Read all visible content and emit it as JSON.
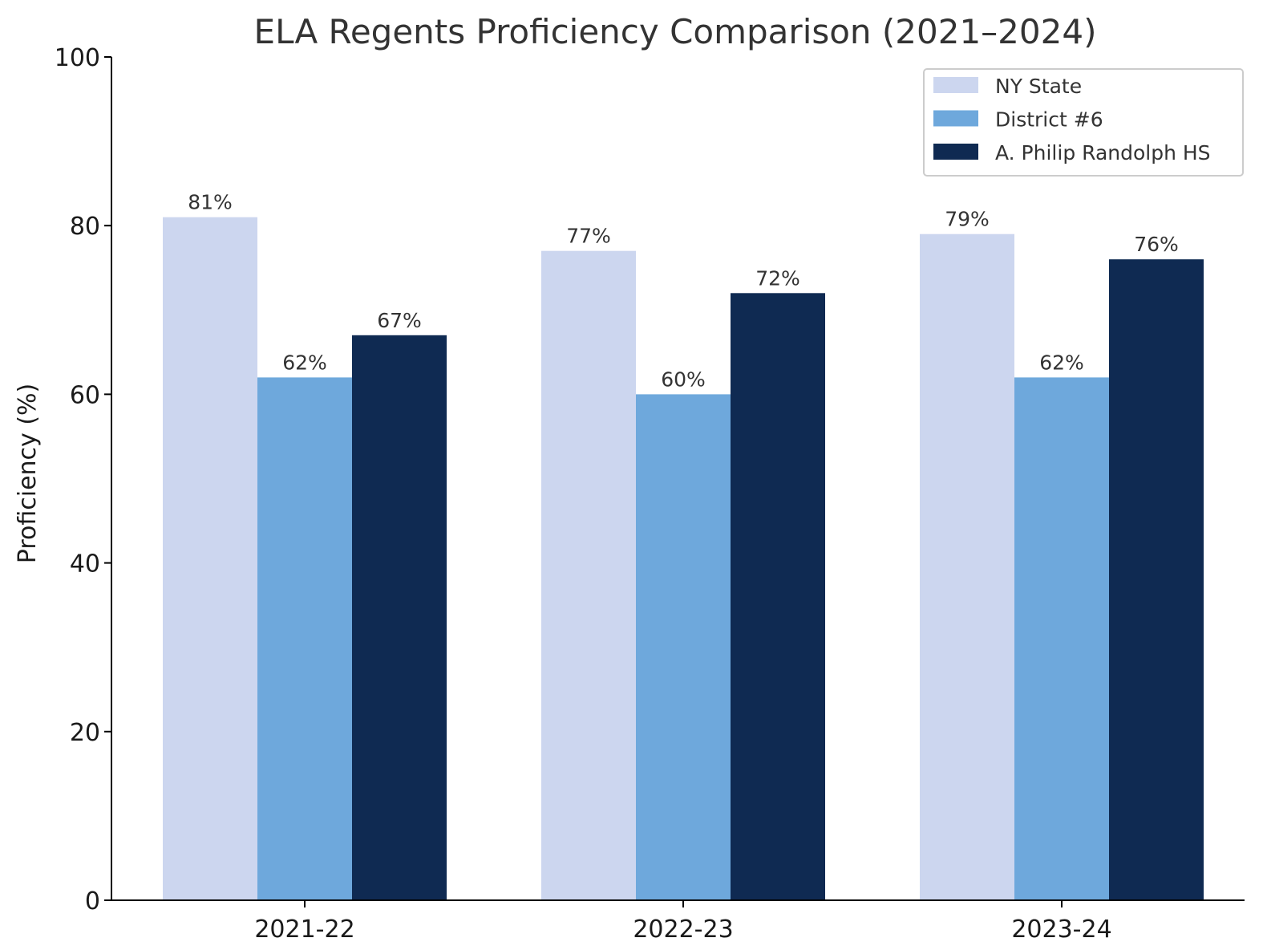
{
  "chart_data": {
    "type": "bar",
    "title": "ELA Regents Proficiency Comparison (2021–2024)",
    "xlabel": "",
    "ylabel": "Proficiency (%)",
    "categories": [
      "2021-22",
      "2022-23",
      "2023-24"
    ],
    "series": [
      {
        "name": "NY State",
        "values": [
          81,
          77,
          79
        ],
        "color": "#ccd6ef"
      },
      {
        "name": "District #6",
        "values": [
          62,
          60,
          62
        ],
        "color": "#6ea8dc"
      },
      {
        "name": "A. Philip Randolph HS",
        "values": [
          67,
          72,
          76
        ],
        "color": "#0f2a52"
      }
    ],
    "data_labels": [
      [
        "81%",
        "77%",
        "79%"
      ],
      [
        "62%",
        "60%",
        "62%"
      ],
      [
        "67%",
        "72%",
        "76%"
      ]
    ],
    "ylim": [
      0,
      100
    ],
    "yticks": [
      0,
      20,
      40,
      60,
      80,
      100
    ],
    "grid": false,
    "legend_position": "top-right"
  }
}
